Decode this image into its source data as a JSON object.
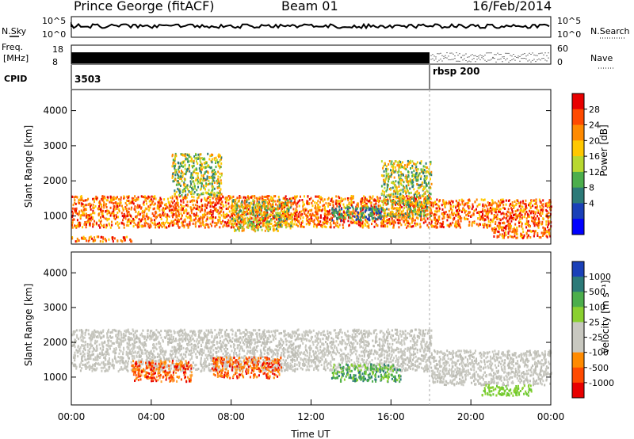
{
  "header": {
    "station": "Prince George (fitACF)",
    "beam": "Beam 01",
    "date": "16/Feb/2014"
  },
  "top_panels": {
    "nsky_label": "N.Sky",
    "nsky_ticks": [
      "10^5",
      "10^0"
    ],
    "nsearch_label": "N.Search",
    "nsearch_ticks": [
      "10^5",
      "10^0"
    ],
    "freq_label": "Freq.",
    "freq_unit": "[MHz]",
    "freq_ticks": [
      "18",
      "8"
    ],
    "nave_label": "Nave",
    "nave_ticks": [
      "60",
      "0"
    ],
    "cpid_label": "CPID",
    "cpid_segments": [
      "3503",
      "rbsp 200"
    ]
  },
  "chart_data": [
    {
      "type": "heatmap",
      "name": "power",
      "ylabel": "Slant Range [km]",
      "yticks": [
        1000,
        2000,
        3000,
        4000
      ],
      "ylim": [
        200,
        4600
      ],
      "xlabel": "Time UT",
      "xticks": [
        "00:00",
        "04:00",
        "08:00",
        "12:00",
        "16:00",
        "20:00",
        "00:00"
      ],
      "xlim_hours": [
        0,
        24
      ],
      "colorbar": {
        "label": "Power [dB]",
        "ticks": [
          "28",
          "24",
          "20",
          "16",
          "12",
          "8",
          "4"
        ],
        "colors": [
          "#e80000",
          "#ff4a00",
          "#ff8a00",
          "#ffc800",
          "#b8d830",
          "#4cae4c",
          "#2c7a78",
          "#1a40b8",
          "#0000ff"
        ]
      },
      "regions": [
        {
          "t0": 0.0,
          "t1": 18.0,
          "r0": 700,
          "r1": 1600,
          "level": "high"
        },
        {
          "t0": 18.0,
          "t1": 24.0,
          "r0": 700,
          "r1": 1500,
          "level": "high"
        },
        {
          "t0": 0.0,
          "t1": 3.0,
          "r0": 300,
          "r1": 450,
          "level": "high"
        },
        {
          "t0": 5.0,
          "t1": 7.5,
          "r0": 1600,
          "r1": 2800,
          "level": "mid"
        },
        {
          "t0": 8.0,
          "t1": 11.0,
          "r0": 600,
          "r1": 1500,
          "level": "mid"
        },
        {
          "t0": 13.0,
          "t1": 15.5,
          "r0": 900,
          "r1": 1300,
          "level": "low"
        },
        {
          "t0": 15.5,
          "t1": 18.0,
          "r0": 1000,
          "r1": 2600,
          "level": "mid"
        },
        {
          "t0": 21.0,
          "t1": 24.0,
          "r0": 400,
          "r1": 700,
          "level": "high"
        }
      ]
    },
    {
      "type": "heatmap",
      "name": "velocity",
      "ylabel": "Slant Range [km]",
      "yticks": [
        1000,
        2000,
        3000,
        4000
      ],
      "ylim": [
        200,
        4600
      ],
      "xlabel": "Time UT",
      "xticks": [
        "00:00",
        "04:00",
        "08:00",
        "12:00",
        "16:00",
        "20:00",
        "00:00"
      ],
      "xlim_hours": [
        0,
        24
      ],
      "colorbar": {
        "label": "Velocity [m s⁻¹]",
        "ticks": [
          "1000",
          "500",
          "100",
          "25",
          "-25",
          "-100",
          "-500",
          "-1000"
        ],
        "colors": [
          "#1a40b8",
          "#2c7a78",
          "#4cae4c",
          "#8ad030",
          "#c8c8c0",
          "#c8c8c0",
          "#ff8a00",
          "#ff4a00",
          "#e80000"
        ]
      },
      "regions": [
        {
          "t0": 0.0,
          "t1": 18.0,
          "r0": 1200,
          "r1": 2400,
          "level": "ground"
        },
        {
          "t0": 18.0,
          "t1": 24.0,
          "r0": 800,
          "r1": 1800,
          "level": "ground"
        },
        {
          "t0": 3.0,
          "t1": 6.0,
          "r0": 900,
          "r1": 1500,
          "level": "neg"
        },
        {
          "t0": 7.0,
          "t1": 10.5,
          "r0": 1000,
          "r1": 1600,
          "level": "neg"
        },
        {
          "t0": 13.0,
          "t1": 16.5,
          "r0": 900,
          "r1": 1400,
          "level": "pos"
        },
        {
          "t0": 20.5,
          "t1": 23.0,
          "r0": 500,
          "r1": 800,
          "level": "pos_bright"
        }
      ]
    }
  ]
}
